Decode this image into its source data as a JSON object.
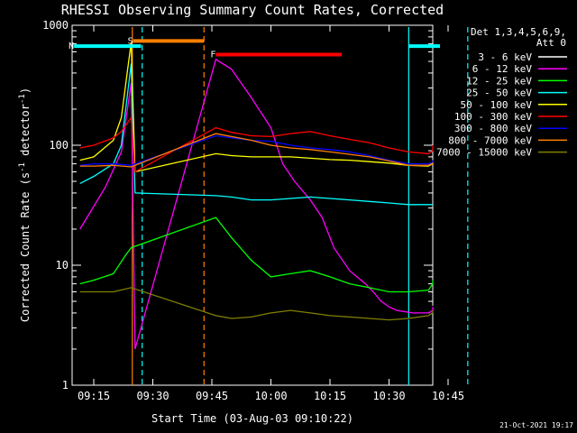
{
  "chart_data": {
    "type": "line",
    "title": "RHESSI Observing Summary Count Rates, Corrected",
    "xlabel": "Start Time (03-Aug-03 09:10:22)",
    "ylabel_main": "Corrected Count Rate (s",
    "ylabel_sup1": "-1",
    "ylabel_mid": " detector",
    "ylabel_sup2": "-1",
    "ylabel_end": ")",
    "y_scale": "log",
    "ylim": [
      1,
      1000
    ],
    "xlim_minutes": [
      9.3,
      72.5
    ],
    "x_ticks": [
      {
        "minute": 15,
        "label": "09:15"
      },
      {
        "minute": 30,
        "label": "09:30"
      },
      {
        "minute": 45,
        "label": "09:45"
      },
      {
        "minute": 60,
        "label": "10:00"
      },
      {
        "minute": 75,
        "label": "10:15"
      },
      {
        "minute": 90,
        "label": "10:30"
      },
      {
        "minute": 105,
        "label": "10:45"
      }
    ],
    "y_ticks": [
      {
        "value": 1,
        "label": "1"
      },
      {
        "value": 10,
        "label": "10"
      },
      {
        "value": 100,
        "label": "100"
      },
      {
        "value": 1000,
        "label": "1000"
      }
    ],
    "legend_header": [
      "Det 1,3,4,5,6,9,",
      "Att 0"
    ],
    "series": [
      {
        "name": "3 - 6 keV",
        "color": "#000000",
        "points": [
          [
            11.5,
            20
          ],
          [
            18,
            45
          ],
          [
            22,
            88
          ],
          [
            24.5,
            340
          ],
          [
            25.5,
            2
          ],
          [
            46,
            420
          ],
          [
            50,
            330
          ],
          [
            55,
            200
          ],
          [
            60,
            120
          ],
          [
            63,
            80
          ],
          [
            66,
            55
          ],
          [
            70,
            35
          ],
          [
            73,
            22
          ],
          [
            76,
            14
          ],
          [
            80,
            8
          ],
          [
            84,
            5
          ],
          [
            86,
            4
          ],
          [
            88,
            3.5
          ],
          [
            90,
            3.5
          ],
          [
            92,
            3.5
          ],
          [
            94,
            3.5
          ],
          [
            96,
            3.6
          ],
          [
            100,
            3.8
          ],
          [
            104,
            4.2
          ],
          [
            108,
            4.6
          ]
        ]
      },
      {
        "name": "6 - 12 keV",
        "color": "#ff00ff",
        "points": [
          [
            11.5,
            20
          ],
          [
            18,
            45
          ],
          [
            22,
            88
          ],
          [
            24.5,
            330
          ],
          [
            25.5,
            2
          ],
          [
            46,
            520
          ],
          [
            50,
            430
          ],
          [
            55,
            250
          ],
          [
            60,
            140
          ],
          [
            63,
            70
          ],
          [
            66,
            50
          ],
          [
            70,
            35
          ],
          [
            73,
            25
          ],
          [
            76,
            14
          ],
          [
            80,
            9
          ],
          [
            84,
            7
          ],
          [
            86,
            6
          ],
          [
            88,
            5
          ],
          [
            90,
            4.5
          ],
          [
            92,
            4.2
          ],
          [
            96,
            4
          ],
          [
            100,
            4
          ],
          [
            104,
            4.2
          ],
          [
            108,
            4.5
          ]
        ]
      },
      {
        "name": "12 - 25 keV",
        "color": "#00ff00",
        "points": [
          [
            11.5,
            7
          ],
          [
            15,
            7.5
          ],
          [
            20,
            8.5
          ],
          [
            23,
            12
          ],
          [
            24.5,
            14
          ],
          [
            46,
            25
          ],
          [
            50,
            17
          ],
          [
            55,
            11
          ],
          [
            60,
            8
          ],
          [
            65,
            8.5
          ],
          [
            70,
            9
          ],
          [
            75,
            8
          ],
          [
            80,
            7
          ],
          [
            85,
            6.5
          ],
          [
            90,
            6
          ],
          [
            95,
            6
          ],
          [
            100,
            6.2
          ],
          [
            104,
            7
          ],
          [
            108,
            7.5
          ]
        ]
      },
      {
        "name": "25 - 50 keV",
        "color": "#00ffff",
        "points": [
          [
            11.5,
            48
          ],
          [
            15,
            55
          ],
          [
            20,
            70
          ],
          [
            22,
            100
          ],
          [
            24.5,
            480
          ],
          [
            25.5,
            40
          ],
          [
            46,
            38
          ],
          [
            50,
            37
          ],
          [
            55,
            35
          ],
          [
            60,
            35
          ],
          [
            65,
            36
          ],
          [
            70,
            37
          ],
          [
            75,
            36
          ],
          [
            80,
            35
          ],
          [
            85,
            34
          ],
          [
            90,
            33
          ],
          [
            95,
            32
          ],
          [
            100,
            32
          ],
          [
            104,
            32
          ],
          [
            108,
            32
          ]
        ]
      },
      {
        "name": "50 - 100 keV",
        "color": "#ffff00",
        "points": [
          [
            11.5,
            75
          ],
          [
            15,
            80
          ],
          [
            20,
            110
          ],
          [
            22,
            170
          ],
          [
            24.5,
            720
          ],
          [
            25.5,
            60
          ],
          [
            46,
            85
          ],
          [
            50,
            82
          ],
          [
            55,
            80
          ],
          [
            60,
            80
          ],
          [
            65,
            80
          ],
          [
            70,
            78
          ],
          [
            75,
            76
          ],
          [
            80,
            75
          ],
          [
            85,
            73
          ],
          [
            90,
            71
          ],
          [
            95,
            68
          ],
          [
            100,
            67
          ],
          [
            104,
            70
          ],
          [
            108,
            74
          ]
        ]
      },
      {
        "name": "100 - 300 keV",
        "color": "#ff0000",
        "points": [
          [
            11.5,
            95
          ],
          [
            15,
            100
          ],
          [
            20,
            115
          ],
          [
            22,
            130
          ],
          [
            24.5,
            170
          ],
          [
            25.5,
            60
          ],
          [
            46,
            140
          ],
          [
            50,
            128
          ],
          [
            55,
            120
          ],
          [
            60,
            118
          ],
          [
            65,
            125
          ],
          [
            70,
            130
          ],
          [
            75,
            120
          ],
          [
            80,
            112
          ],
          [
            85,
            105
          ],
          [
            90,
            95
          ],
          [
            95,
            88
          ],
          [
            100,
            85
          ],
          [
            104,
            90
          ],
          [
            108,
            100
          ]
        ]
      },
      {
        "name": "300 - 800 keV",
        "color": "#0000ff",
        "points": [
          [
            11.5,
            68
          ],
          [
            15,
            70
          ],
          [
            20,
            70
          ],
          [
            24.5,
            68
          ],
          [
            46,
            120
          ],
          [
            50,
            115
          ],
          [
            55,
            110
          ],
          [
            60,
            108
          ],
          [
            65,
            100
          ],
          [
            70,
            95
          ],
          [
            75,
            92
          ],
          [
            80,
            88
          ],
          [
            85,
            82
          ],
          [
            90,
            75
          ],
          [
            95,
            70
          ],
          [
            100,
            70
          ],
          [
            104,
            72
          ],
          [
            108,
            75
          ]
        ]
      },
      {
        "name": "800 - 7000 keV",
        "color": "#ff8000",
        "points": [
          [
            11.5,
            67
          ],
          [
            15,
            67
          ],
          [
            20,
            68
          ],
          [
            24.5,
            66
          ],
          [
            46,
            125
          ],
          [
            50,
            118
          ],
          [
            55,
            110
          ],
          [
            60,
            100
          ],
          [
            65,
            95
          ],
          [
            70,
            92
          ],
          [
            75,
            88
          ],
          [
            80,
            84
          ],
          [
            85,
            80
          ],
          [
            90,
            74
          ],
          [
            95,
            68
          ],
          [
            100,
            68
          ],
          [
            104,
            70
          ],
          [
            108,
            72
          ]
        ]
      },
      {
        "name": "7000 - 15000 keV",
        "color": "#808000",
        "points": [
          [
            11.5,
            6
          ],
          [
            15,
            6
          ],
          [
            20,
            6
          ],
          [
            24.5,
            6.5
          ],
          [
            46,
            3.8
          ],
          [
            50,
            3.6
          ],
          [
            55,
            3.7
          ],
          [
            60,
            4
          ],
          [
            65,
            4.2
          ],
          [
            70,
            4
          ],
          [
            75,
            3.8
          ],
          [
            80,
            3.7
          ],
          [
            85,
            3.6
          ],
          [
            90,
            3.5
          ],
          [
            95,
            3.6
          ],
          [
            100,
            3.8
          ],
          [
            104,
            4
          ],
          [
            108,
            4.2
          ]
        ]
      }
    ],
    "flag_bars": [
      {
        "label": "S",
        "color": "#ff8000",
        "start": 25,
        "end": 43,
        "value": 740
      },
      {
        "label": "N",
        "color": "#00ffff",
        "start": 10,
        "end": 27,
        "value": 670
      },
      {
        "label": "",
        "color": "#00ffff",
        "start": 95,
        "end": 110,
        "value": 670
      },
      {
        "label": "F",
        "color": "#ff0000",
        "start": 46,
        "end": 78,
        "value": 570
      }
    ],
    "vertical_markers": [
      {
        "minute": 24.8,
        "color": "#ff8000",
        "style": "solid"
      },
      {
        "minute": 27.3,
        "color": "#00ffff",
        "style": "dashed"
      },
      {
        "minute": 43.0,
        "color": "#ff8000",
        "style": "dashed"
      },
      {
        "minute": 95.0,
        "color": "#00ffff",
        "style": "solid"
      },
      {
        "minute": 110.0,
        "color": "#00ffff",
        "style": "dashed"
      }
    ],
    "timestamp": "21-Oct-2021 19:17"
  }
}
